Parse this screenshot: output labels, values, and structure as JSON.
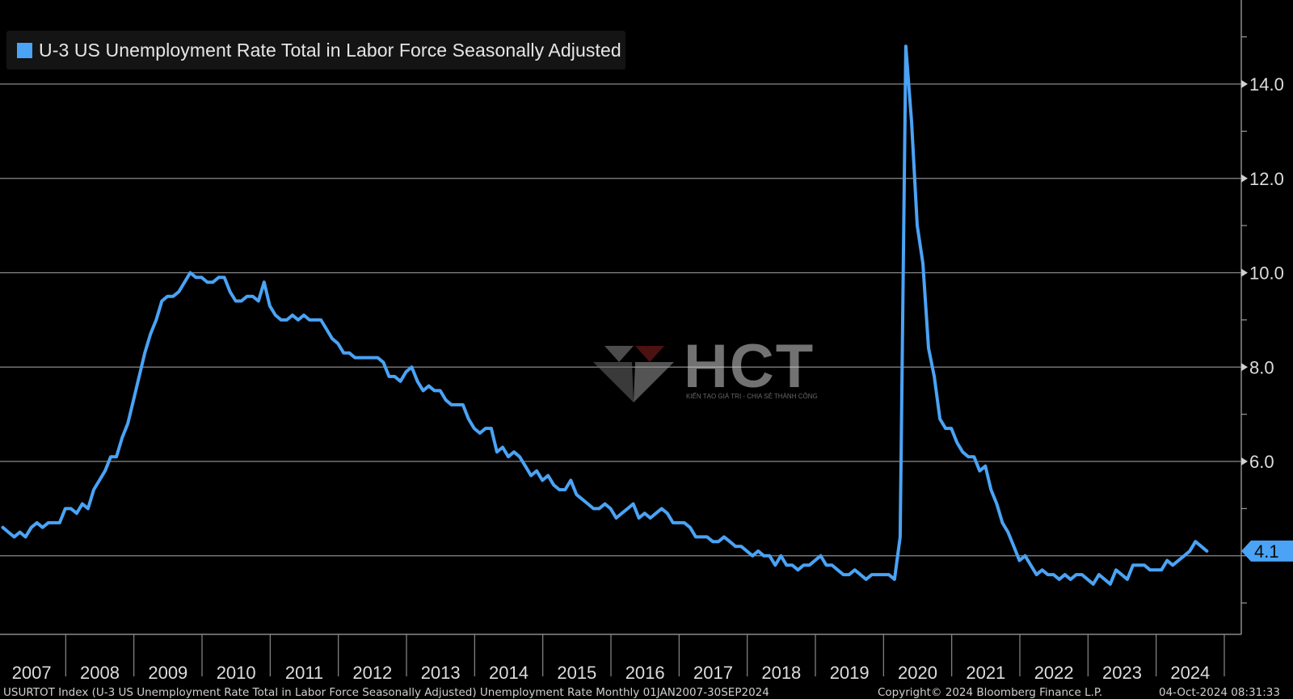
{
  "legend": {
    "label": "U-3 US Unemployment Rate Total in Labor Force Seasonally Adjusted",
    "color": "#4aa3f5"
  },
  "footer": {
    "description": "USURTOT Index (U-3 US Unemployment Rate Total in Labor Force Seasonally Adjusted) Unemployment Rate  Monthly 01JAN2007-30SEP2024",
    "copyright": "Copyright© 2024 Bloomberg Finance L.P.",
    "timestamp": "04-Oct-2024 08:31:33"
  },
  "watermark": {
    "text": "HCT",
    "tagline": "KIẾN TẠO GIÁ TRỊ - CHIA SẺ THÀNH CÔNG"
  },
  "chart_data": {
    "type": "line",
    "series": [
      {
        "name": "U-3 US Unemployment Rate Total in Labor Force Seasonally Adjusted",
        "color": "#4aa3f5",
        "start": "2007-01",
        "frequency": "monthly",
        "values": [
          4.6,
          4.5,
          4.4,
          4.5,
          4.4,
          4.6,
          4.7,
          4.6,
          4.7,
          4.7,
          4.7,
          5.0,
          5.0,
          4.9,
          5.1,
          5.0,
          5.4,
          5.6,
          5.8,
          6.1,
          6.1,
          6.5,
          6.8,
          7.3,
          7.8,
          8.3,
          8.7,
          9.0,
          9.4,
          9.5,
          9.5,
          9.6,
          9.8,
          10.0,
          9.9,
          9.9,
          9.8,
          9.8,
          9.9,
          9.9,
          9.6,
          9.4,
          9.4,
          9.5,
          9.5,
          9.4,
          9.8,
          9.3,
          9.1,
          9.0,
          9.0,
          9.1,
          9.0,
          9.1,
          9.0,
          9.0,
          9.0,
          8.8,
          8.6,
          8.5,
          8.3,
          8.3,
          8.2,
          8.2,
          8.2,
          8.2,
          8.2,
          8.1,
          7.8,
          7.8,
          7.7,
          7.9,
          8.0,
          7.7,
          7.5,
          7.6,
          7.5,
          7.5,
          7.3,
          7.2,
          7.2,
          7.2,
          6.9,
          6.7,
          6.6,
          6.7,
          6.7,
          6.2,
          6.3,
          6.1,
          6.2,
          6.1,
          5.9,
          5.7,
          5.8,
          5.6,
          5.7,
          5.5,
          5.4,
          5.4,
          5.6,
          5.3,
          5.2,
          5.1,
          5.0,
          5.0,
          5.1,
          5.0,
          4.8,
          4.9,
          5.0,
          5.1,
          4.8,
          4.9,
          4.8,
          4.9,
          5.0,
          4.9,
          4.7,
          4.7,
          4.7,
          4.6,
          4.4,
          4.4,
          4.4,
          4.3,
          4.3,
          4.4,
          4.3,
          4.2,
          4.2,
          4.1,
          4.0,
          4.1,
          4.0,
          4.0,
          3.8,
          4.0,
          3.8,
          3.8,
          3.7,
          3.8,
          3.8,
          3.9,
          4.0,
          3.8,
          3.8,
          3.7,
          3.6,
          3.6,
          3.7,
          3.6,
          3.5,
          3.6,
          3.6,
          3.6,
          3.6,
          3.5,
          4.4,
          14.8,
          13.2,
          11.0,
          10.2,
          8.4,
          7.8,
          6.9,
          6.7,
          6.7,
          6.4,
          6.2,
          6.1,
          6.1,
          5.8,
          5.9,
          5.4,
          5.1,
          4.7,
          4.5,
          4.2,
          3.9,
          4.0,
          3.8,
          3.6,
          3.7,
          3.6,
          3.6,
          3.5,
          3.6,
          3.5,
          3.6,
          3.6,
          3.5,
          3.4,
          3.6,
          3.5,
          3.4,
          3.7,
          3.6,
          3.5,
          3.8,
          3.8,
          3.8,
          3.7,
          3.7,
          3.7,
          3.9,
          3.8,
          3.9,
          4.0,
          4.1,
          4.3,
          4.2,
          4.1
        ]
      }
    ],
    "x_categories": [
      "2007",
      "2008",
      "2009",
      "2010",
      "2011",
      "2012",
      "2013",
      "2014",
      "2015",
      "2016",
      "2017",
      "2018",
      "2019",
      "2020",
      "2021",
      "2022",
      "2023",
      "2024"
    ],
    "y_ticks": [
      "6.0",
      "8.0",
      "10.0",
      "12.0",
      "14.0"
    ],
    "ylim": [
      2.0,
      15.6
    ],
    "last_value_label": "4.1",
    "grid": true,
    "y_axis_position": "right",
    "legend_position": "top-left"
  }
}
